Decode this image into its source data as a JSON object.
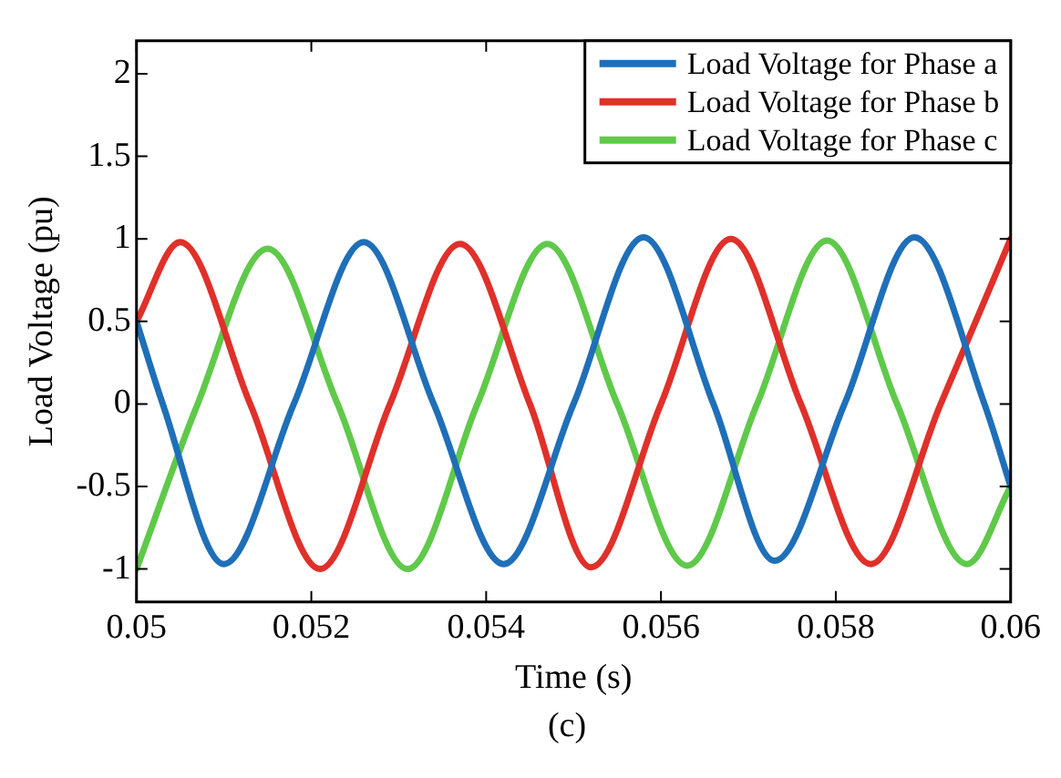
{
  "chart_data": {
    "type": "line",
    "xlabel": "Time (s)",
    "ylabel": "Load Voltage (pu)",
    "annotations": [
      "(c)"
    ],
    "xlim": [
      0.05,
      0.06
    ],
    "xticks": [
      0.05,
      0.052,
      0.054,
      0.056,
      0.058,
      0.06
    ],
    "ylim": [
      -1.2,
      2.2
    ],
    "yticks": [
      -1,
      -0.5,
      0,
      0.5,
      1,
      1.5,
      2
    ],
    "grid": false,
    "legend": "top right",
    "marker": "none",
    "line_style": "solid",
    "series": [
      {
        "name": "Load Voltage for Phase a",
        "color": "#1f6fb8",
        "x": [
          0.05,
          0.0503,
          0.051,
          0.0518,
          0.0526,
          0.0534,
          0.0542,
          0.055,
          0.0558,
          0.0566,
          0.0573,
          0.0581,
          0.0589,
          0.0597,
          0.06
        ],
        "values": [
          0.5,
          0,
          -0.97,
          0,
          0.98,
          0,
          -0.97,
          0,
          1.01,
          0,
          -0.95,
          0,
          1.01,
          0,
          -0.5
        ]
      },
      {
        "name": "Load Voltage for Phase b",
        "color": "#e0302a",
        "x": [
          0.05,
          0.0505,
          0.0513,
          0.0521,
          0.0529,
          0.0537,
          0.0545,
          0.0552,
          0.056,
          0.0568,
          0.0576,
          0.0584,
          0.0592,
          0.06
        ],
        "values": [
          0.5,
          0.98,
          0,
          -1.0,
          0,
          0.97,
          0,
          -0.99,
          0,
          1.0,
          0,
          -0.97,
          0,
          1.0
        ]
      },
      {
        "name": "Load Voltage for Phase c",
        "color": "#5fc94a",
        "x": [
          0.05,
          0.0507,
          0.0515,
          0.0523,
          0.0531,
          0.0539,
          0.0547,
          0.0555,
          0.0563,
          0.0571,
          0.0579,
          0.0587,
          0.0595,
          0.06
        ],
        "values": [
          -1.0,
          0,
          0.94,
          0,
          -1.0,
          0,
          0.97,
          0,
          -0.98,
          0,
          0.99,
          0,
          -0.97,
          -0.5
        ]
      }
    ]
  }
}
